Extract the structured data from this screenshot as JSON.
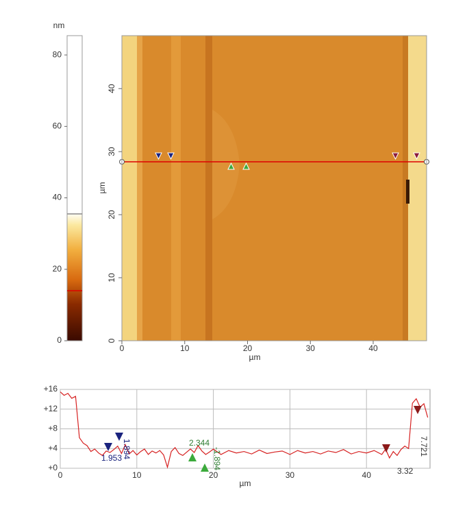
{
  "colorbar": {
    "unit": "nm",
    "ylim": [
      0,
      85.4
    ],
    "yticks": [
      0,
      20,
      40,
      60,
      80
    ]
  },
  "image": {
    "xlabel": "µm",
    "ylabel": "µm",
    "xlim": [
      0,
      48.5
    ],
    "ylim": [
      0,
      48.4
    ],
    "xticks": [
      0,
      10,
      20,
      30,
      40
    ],
    "yticks": [
      0,
      10,
      20,
      30,
      40
    ]
  },
  "chart_data": {
    "type": "line",
    "xlabel": "µm",
    "x": [
      0,
      0.5,
      1,
      1.5,
      2,
      2.5,
      3,
      3.5,
      4,
      4.5,
      5,
      5.5,
      6,
      6.5,
      7,
      7.5,
      8,
      8.5,
      9,
      9.5,
      10,
      10.5,
      11,
      11.5,
      12,
      12.5,
      13,
      13.5,
      14,
      14.5,
      15,
      15.5,
      16,
      17,
      17.5,
      18,
      18.5,
      19,
      19.5,
      20,
      21,
      22,
      23,
      24,
      25,
      26,
      27,
      28,
      29,
      30,
      31,
      32,
      33,
      34,
      35,
      36,
      37,
      38,
      39,
      40,
      41,
      42,
      42.5,
      43,
      43.5,
      44,
      44.5,
      45,
      45.5,
      46,
      46.5,
      47,
      47.5,
      48
    ],
    "series": [
      {
        "color": "#d62020",
        "values": [
          15.5,
          14.8,
          15.2,
          14.2,
          14.6,
          6.2,
          5.1,
          4.6,
          3.4,
          3.9,
          3.1,
          2.6,
          3.5,
          3.2,
          3.8,
          4.5,
          3.0,
          4.8,
          2.9,
          3.6,
          2.7,
          3.4,
          3.9,
          2.8,
          3.5,
          3.1,
          3.6,
          2.7,
          0.2,
          3.4,
          4.2,
          3.0,
          2.6,
          3.9,
          3.2,
          4.6,
          3.5,
          2.8,
          3.3,
          3.9,
          2.8,
          3.6,
          3.1,
          3.4,
          2.9,
          3.7,
          3.0,
          3.3,
          3.5,
          2.8,
          3.6,
          3.1,
          3.4,
          2.9,
          3.5,
          3.2,
          3.8,
          2.9,
          3.4,
          3.1,
          3.6,
          2.8,
          3.9,
          2.1,
          3.4,
          2.6,
          3.8,
          4.5,
          4.0,
          13.2,
          14.1,
          12.4,
          13.1,
          10.3
        ]
      }
    ],
    "xlim": [
      0,
      48.3
    ],
    "ylim": [
      0,
      16
    ],
    "xticks": [
      0,
      10,
      20,
      30,
      40
    ],
    "yticks": [
      {
        "value": 0,
        "label": "+0"
      },
      {
        "value": 4,
        "label": "+4"
      },
      {
        "value": 8,
        "label": "+8"
      },
      {
        "value": 12,
        "label": "+12"
      },
      {
        "value": 16,
        "label": "+16"
      }
    ],
    "grid": true,
    "annotations": [
      "1.953",
      "1.894",
      "2.344",
      "-1.894",
      "3.32",
      "7.721"
    ]
  }
}
